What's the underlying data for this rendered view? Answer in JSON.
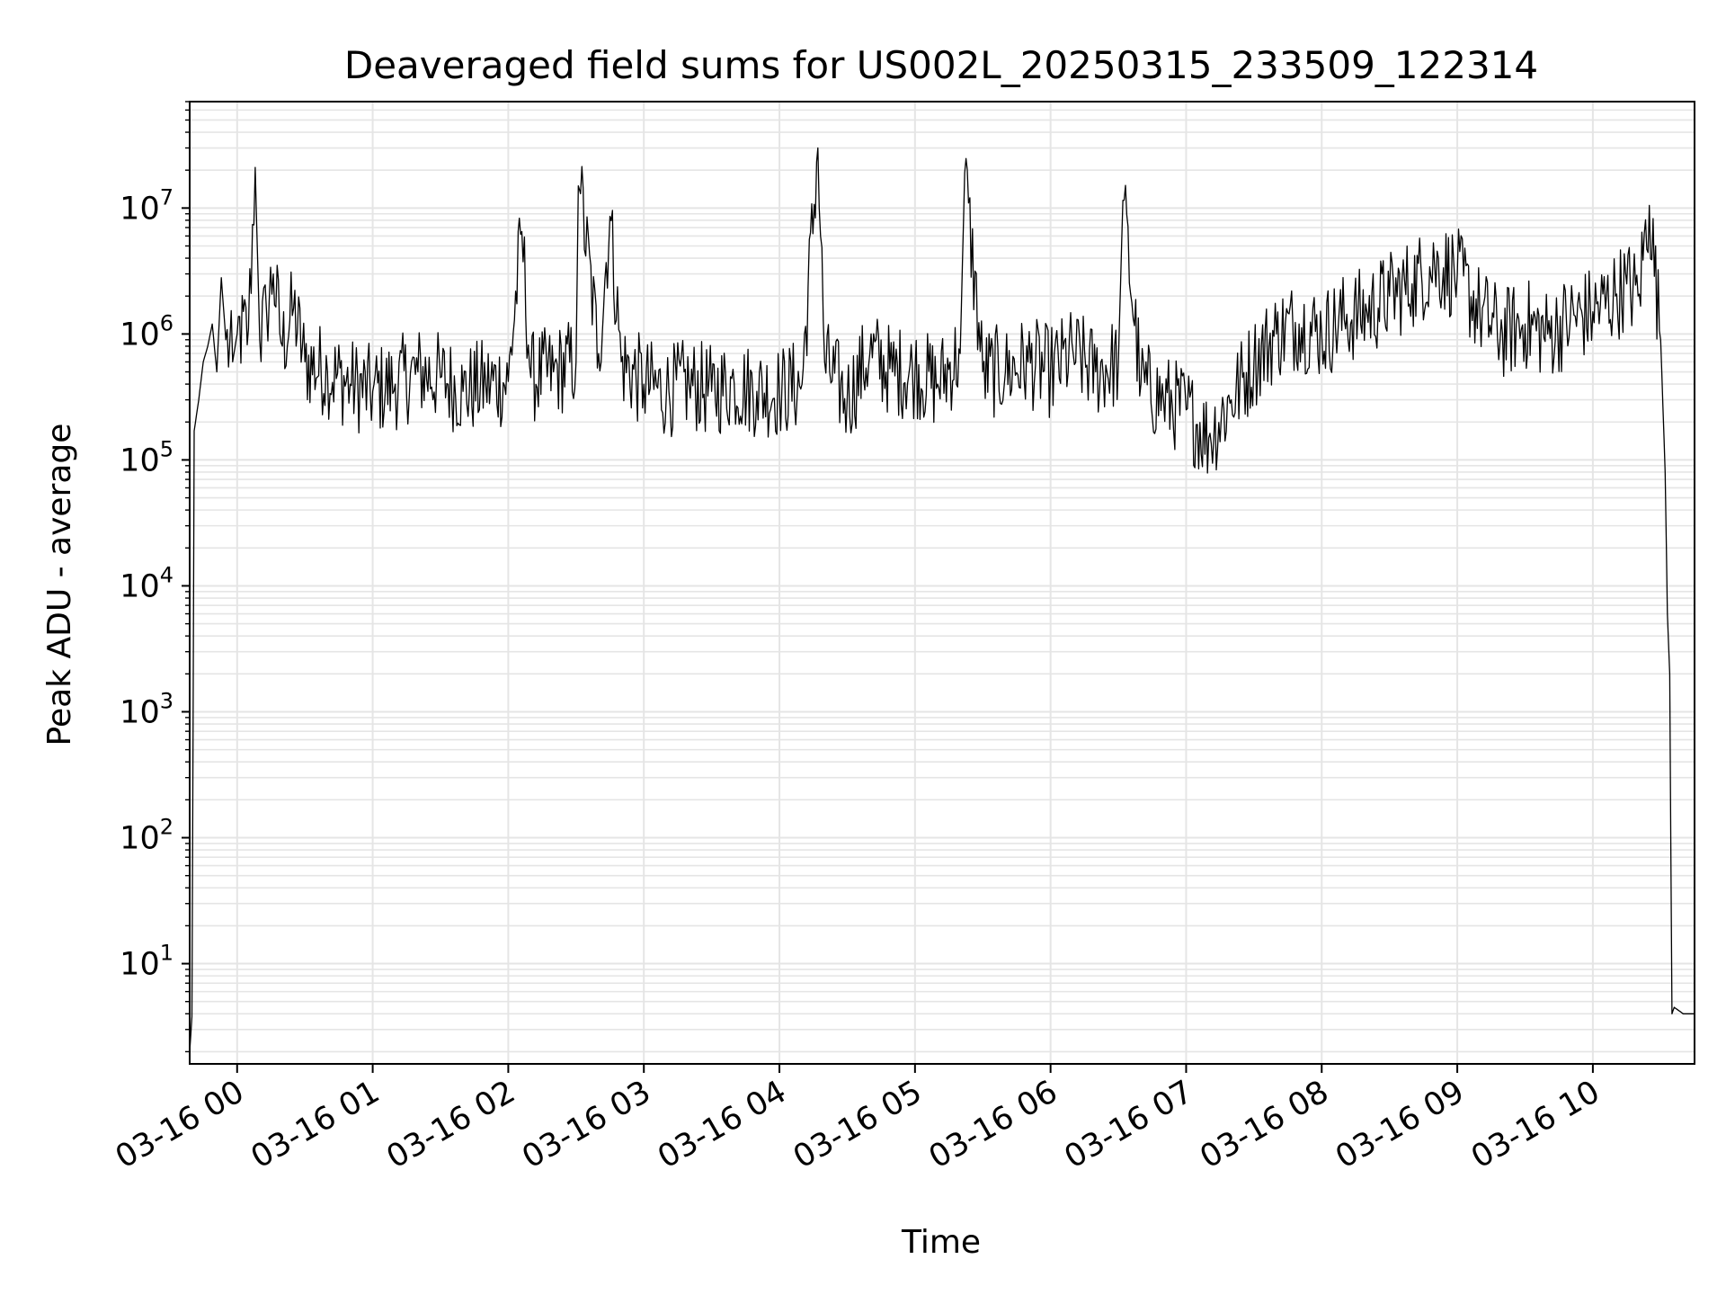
{
  "chart_data": {
    "type": "line",
    "title": "Deaveraged field sums for US002L_20250315_233509_122314",
    "xlabel": "Time",
    "ylabel": "Peak ADU - average",
    "y_scale": "log",
    "ylim": [
      1.6,
      70000000
    ],
    "xlim": [
      "2025-03-15 23:39",
      "2025-03-16 10:45"
    ],
    "grid": true,
    "grid_color": "#e5e5e5",
    "line_color": "#000000",
    "x_ticks": [
      {
        "value": "2025-03-16 00:00",
        "label": "03-16 00"
      },
      {
        "value": "2025-03-16 01:00",
        "label": "03-16 01"
      },
      {
        "value": "2025-03-16 02:00",
        "label": "03-16 02"
      },
      {
        "value": "2025-03-16 03:00",
        "label": "03-16 03"
      },
      {
        "value": "2025-03-16 04:00",
        "label": "03-16 04"
      },
      {
        "value": "2025-03-16 05:00",
        "label": "03-16 05"
      },
      {
        "value": "2025-03-16 06:00",
        "label": "03-16 06"
      },
      {
        "value": "2025-03-16 07:00",
        "label": "03-16 07"
      },
      {
        "value": "2025-03-16 08:00",
        "label": "03-16 08"
      },
      {
        "value": "2025-03-16 09:00",
        "label": "03-16 09"
      },
      {
        "value": "2025-03-16 10:00",
        "label": "03-16 10"
      }
    ],
    "y_ticks": [
      {
        "value": 10,
        "base": "10",
        "exp": "1"
      },
      {
        "value": 100,
        "base": "10",
        "exp": "2"
      },
      {
        "value": 1000,
        "base": "10",
        "exp": "3"
      },
      {
        "value": 10000,
        "base": "10",
        "exp": "4"
      },
      {
        "value": 100000,
        "base": "10",
        "exp": "5"
      },
      {
        "value": 1000000,
        "base": "10",
        "exp": "6"
      },
      {
        "value": 10000000,
        "base": "10",
        "exp": "7"
      }
    ],
    "series": [
      {
        "x": [
          "2025-03-15 23:39",
          "2025-03-15 23:40",
          "2025-03-15 23:41",
          "2025-03-15 23:43",
          "2025-03-15 23:45",
          "2025-03-15 23:47",
          "2025-03-15 23:49",
          "2025-03-15 23:51",
          "2025-03-15 23:53",
          "2025-03-15 23:55",
          "2025-03-15 23:58",
          "2025-03-16 00:00",
          "2025-03-16 00:05",
          "2025-03-16 00:08",
          "2025-03-16 00:10",
          "2025-03-16 00:13",
          "2025-03-16 00:16",
          "2025-03-16 00:20",
          "2025-03-16 00:25",
          "2025-03-16 00:30",
          "2025-03-16 00:40",
          "2025-03-16 00:50",
          "2025-03-16 01:00",
          "2025-03-16 01:10",
          "2025-03-16 01:20",
          "2025-03-16 01:30",
          "2025-03-16 01:40",
          "2025-03-16 01:50",
          "2025-03-16 02:00",
          "2025-03-16 02:06",
          "2025-03-16 02:10",
          "2025-03-16 02:20",
          "2025-03-16 02:30",
          "2025-03-16 02:31",
          "2025-03-16 02:32",
          "2025-03-16 02:40",
          "2025-03-16 02:45",
          "2025-03-16 02:50",
          "2025-03-16 03:00",
          "2025-03-16 03:10",
          "2025-03-16 03:20",
          "2025-03-16 03:30",
          "2025-03-16 03:40",
          "2025-03-16 03:50",
          "2025-03-16 04:00",
          "2025-03-16 04:10",
          "2025-03-16 04:17",
          "2025-03-16 04:20",
          "2025-03-16 04:30",
          "2025-03-16 04:40",
          "2025-03-16 04:50",
          "2025-03-16 05:00",
          "2025-03-16 05:10",
          "2025-03-16 05:20",
          "2025-03-16 05:22",
          "2025-03-16 05:30",
          "2025-03-16 05:40",
          "2025-03-16 05:50",
          "2025-03-16 06:00",
          "2025-03-16 06:10",
          "2025-03-16 06:20",
          "2025-03-16 06:30",
          "2025-03-16 06:32",
          "2025-03-16 06:40",
          "2025-03-16 06:50",
          "2025-03-16 07:00",
          "2025-03-16 07:10",
          "2025-03-16 07:20",
          "2025-03-16 07:30",
          "2025-03-16 07:40",
          "2025-03-16 07:50",
          "2025-03-16 08:00",
          "2025-03-16 08:10",
          "2025-03-16 08:20",
          "2025-03-16 08:30",
          "2025-03-16 08:40",
          "2025-03-16 08:50",
          "2025-03-16 09:00",
          "2025-03-16 09:10",
          "2025-03-16 09:20",
          "2025-03-16 09:30",
          "2025-03-16 09:40",
          "2025-03-16 09:50",
          "2025-03-16 10:00",
          "2025-03-16 10:10",
          "2025-03-16 10:15",
          "2025-03-16 10:20",
          "2025-03-16 10:25",
          "2025-03-16 10:30",
          "2025-03-16 10:32",
          "2025-03-16 10:33",
          "2025-03-16 10:34",
          "2025-03-16 10:35",
          "2025-03-16 10:36",
          "2025-03-16 10:40",
          "2025-03-16 10:45"
        ],
        "y": [
          2,
          3.8,
          170000,
          300000,
          600000,
          800000,
          1200000,
          500000,
          2800000,
          900000,
          600000,
          1000000,
          1100000,
          21000000,
          900000,
          1500000,
          3000000,
          800000,
          1600000,
          600000,
          500000,
          400000,
          350000,
          400000,
          500000,
          450000,
          350000,
          400000,
          420000,
          6500000,
          450000,
          500000,
          600000,
          15000000,
          13000000,
          700000,
          8600000,
          600000,
          400000,
          350000,
          400000,
          350000,
          400000,
          350000,
          350000,
          400000,
          30000000,
          600000,
          300000,
          700000,
          500000,
          500000,
          400000,
          700000,
          19000000,
          500000,
          500000,
          600000,
          500000,
          700000,
          500000,
          600000,
          11500000,
          400000,
          300000,
          250000,
          150000,
          300000,
          600000,
          1000000,
          1200000,
          1000000,
          1300000,
          1500000,
          2000000,
          2500000,
          3500000,
          3000000,
          1500000,
          1000000,
          1200000,
          1000000,
          1300000,
          1500000,
          2000000,
          2500000,
          2000000,
          10500000,
          900000,
          80000,
          6000,
          2000,
          4,
          4.5,
          4,
          4
        ]
      }
    ]
  }
}
